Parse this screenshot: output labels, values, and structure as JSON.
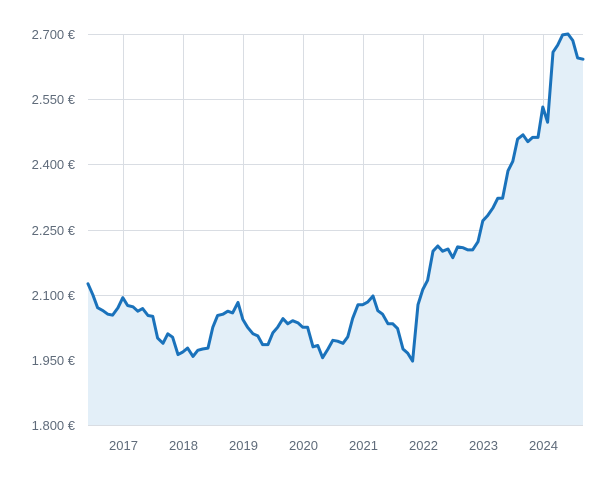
{
  "chart_data": {
    "type": "area",
    "title": "",
    "xlabel": "",
    "ylabel": "",
    "y_ticks": [
      {
        "value": 1800,
        "label": "1.800 €"
      },
      {
        "value": 1950,
        "label": "1.950 €"
      },
      {
        "value": 2100,
        "label": "2.100 €"
      },
      {
        "value": 2250,
        "label": "2.250 €"
      },
      {
        "value": 2400,
        "label": "2.400 €"
      },
      {
        "value": 2550,
        "label": "2.550 €"
      },
      {
        "value": 2700,
        "label": "2.700 €"
      }
    ],
    "x_ticks": [
      {
        "value": 2017.0,
        "label": "2017"
      },
      {
        "value": 2018.0,
        "label": "2018"
      },
      {
        "value": 2019.0,
        "label": "2019"
      },
      {
        "value": 2020.0,
        "label": "2020"
      },
      {
        "value": 2021.0,
        "label": "2021"
      },
      {
        "value": 2022.0,
        "label": "2022"
      },
      {
        "value": 2023.0,
        "label": "2023"
      },
      {
        "value": 2024.0,
        "label": "2024"
      }
    ],
    "xlim": [
      2016.42,
      2024.67
    ],
    "ylim": [
      1800,
      2700
    ],
    "grid": true,
    "legend": "none",
    "colors": {
      "line": "#1a72bb",
      "fill": "#e3eff8",
      "grid": "#d9dde3",
      "tick_text": "#5f6b7a"
    },
    "series": [
      {
        "points": [
          [
            2016.42,
            2125
          ],
          [
            2016.5,
            2100
          ],
          [
            2016.58,
            2070
          ],
          [
            2016.67,
            2063
          ],
          [
            2016.75,
            2055
          ],
          [
            2016.83,
            2053
          ],
          [
            2016.92,
            2070
          ],
          [
            2017.0,
            2093
          ],
          [
            2017.08,
            2075
          ],
          [
            2017.17,
            2072
          ],
          [
            2017.25,
            2062
          ],
          [
            2017.33,
            2068
          ],
          [
            2017.42,
            2052
          ],
          [
            2017.5,
            2050
          ],
          [
            2017.58,
            2000
          ],
          [
            2017.67,
            1988
          ],
          [
            2017.75,
            2010
          ],
          [
            2017.83,
            2002
          ],
          [
            2017.92,
            1962
          ],
          [
            2018.0,
            1968
          ],
          [
            2018.08,
            1977
          ],
          [
            2018.17,
            1958
          ],
          [
            2018.25,
            1972
          ],
          [
            2018.33,
            1975
          ],
          [
            2018.42,
            1977
          ],
          [
            2018.5,
            2025
          ],
          [
            2018.58,
            2052
          ],
          [
            2018.67,
            2055
          ],
          [
            2018.75,
            2062
          ],
          [
            2018.83,
            2058
          ],
          [
            2018.92,
            2082
          ],
          [
            2019.0,
            2043
          ],
          [
            2019.08,
            2025
          ],
          [
            2019.17,
            2010
          ],
          [
            2019.25,
            2005
          ],
          [
            2019.33,
            1985
          ],
          [
            2019.42,
            1985
          ],
          [
            2019.5,
            2012
          ],
          [
            2019.58,
            2025
          ],
          [
            2019.67,
            2045
          ],
          [
            2019.75,
            2033
          ],
          [
            2019.83,
            2040
          ],
          [
            2019.92,
            2035
          ],
          [
            2020.0,
            2025
          ],
          [
            2020.08,
            2025
          ],
          [
            2020.17,
            1980
          ],
          [
            2020.25,
            1983
          ],
          [
            2020.33,
            1955
          ],
          [
            2020.42,
            1975
          ],
          [
            2020.5,
            1995
          ],
          [
            2020.58,
            1993
          ],
          [
            2020.67,
            1988
          ],
          [
            2020.75,
            2003
          ],
          [
            2020.83,
            2045
          ],
          [
            2020.92,
            2077
          ],
          [
            2021.0,
            2077
          ],
          [
            2021.08,
            2083
          ],
          [
            2021.17,
            2097
          ],
          [
            2021.25,
            2063
          ],
          [
            2021.33,
            2055
          ],
          [
            2021.42,
            2033
          ],
          [
            2021.5,
            2033
          ],
          [
            2021.58,
            2022
          ],
          [
            2021.67,
            1975
          ],
          [
            2021.75,
            1965
          ],
          [
            2021.83,
            1947
          ],
          [
            2021.92,
            2077
          ],
          [
            2022.0,
            2112
          ],
          [
            2022.08,
            2133
          ],
          [
            2022.17,
            2200
          ],
          [
            2022.25,
            2212
          ],
          [
            2022.33,
            2200
          ],
          [
            2022.42,
            2205
          ],
          [
            2022.5,
            2185
          ],
          [
            2022.58,
            2210
          ],
          [
            2022.67,
            2208
          ],
          [
            2022.75,
            2203
          ],
          [
            2022.83,
            2203
          ],
          [
            2022.92,
            2222
          ],
          [
            2023.0,
            2270
          ],
          [
            2023.08,
            2282
          ],
          [
            2023.17,
            2300
          ],
          [
            2023.25,
            2322
          ],
          [
            2023.33,
            2322
          ],
          [
            2023.42,
            2385
          ],
          [
            2023.5,
            2407
          ],
          [
            2023.58,
            2458
          ],
          [
            2023.67,
            2468
          ],
          [
            2023.75,
            2452
          ],
          [
            2023.83,
            2462
          ],
          [
            2023.92,
            2462
          ],
          [
            2024.0,
            2532
          ],
          [
            2024.08,
            2497
          ],
          [
            2024.17,
            2658
          ],
          [
            2024.25,
            2675
          ],
          [
            2024.33,
            2698
          ],
          [
            2024.42,
            2700
          ],
          [
            2024.5,
            2685
          ],
          [
            2024.58,
            2645
          ],
          [
            2024.67,
            2642
          ]
        ]
      }
    ]
  }
}
